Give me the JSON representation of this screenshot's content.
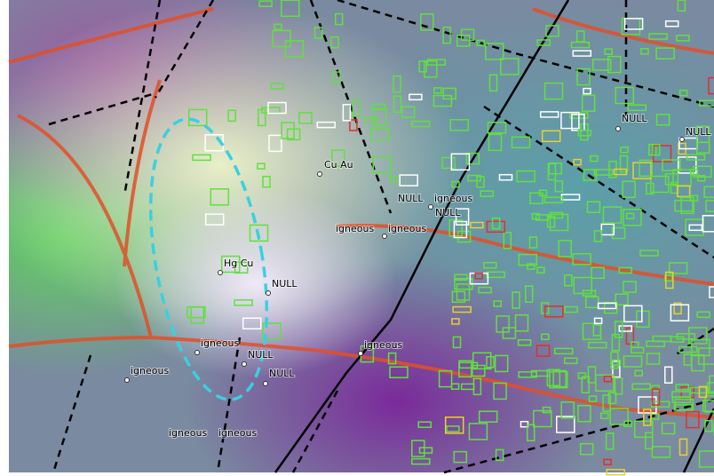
{
  "labels": [
    {
      "text": "NULL"
    },
    {
      "text": "NULL"
    },
    {
      "text": "Cu Au"
    },
    {
      "text": "NULL"
    },
    {
      "text": "igneous"
    },
    {
      "text": "NULL"
    },
    {
      "text": "igneous"
    },
    {
      "text": "igneous"
    },
    {
      "text": "Hg Cu"
    },
    {
      "text": "NULL"
    },
    {
      "text": "igneous"
    },
    {
      "text": "igneous"
    },
    {
      "text": "NULL"
    },
    {
      "text": "igneous"
    },
    {
      "text": "NULL"
    },
    {
      "text": "igneous"
    },
    {
      "text": "igneous"
    }
  ]
}
